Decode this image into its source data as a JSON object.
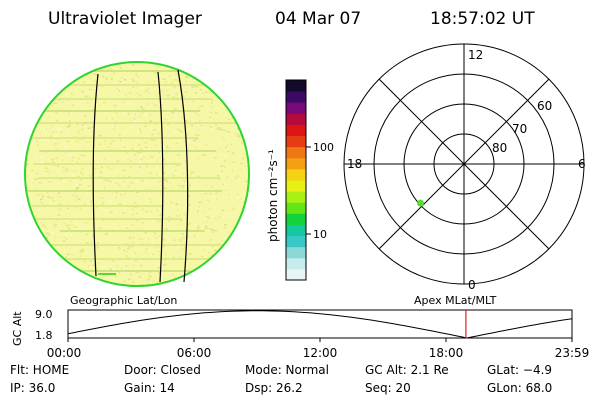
{
  "header": {
    "instrument": "Ultraviolet Imager",
    "date": "04 Mar 07",
    "time": "18:57:02 UT"
  },
  "disk": {
    "caption": "Geographic Lat/Lon",
    "fill_color": "#f7f7a8",
    "rim_color": "#2fd52f"
  },
  "colorbar": {
    "unit_label": "photon cm⁻²s⁻¹",
    "ticks": [
      {
        "value": 100,
        "label": "100"
      },
      {
        "value": 10,
        "label": "10"
      }
    ],
    "colors": [
      "#e6f4f4",
      "#c8ecec",
      "#8ad8d8",
      "#38c8c8",
      "#16c8a0",
      "#14d23c",
      "#64e614",
      "#aaf014",
      "#e6f014",
      "#f5d214",
      "#f5a014",
      "#f07814",
      "#e63c14",
      "#dc1414",
      "#b40a3c",
      "#780a78",
      "#3c0a64",
      "#140a2c"
    ]
  },
  "polar": {
    "caption": "Apex MLat/MLT",
    "mlt_labels": {
      "top": "12",
      "right": "6",
      "bottom": "0",
      "left": "18"
    },
    "lat_labels": [
      "60",
      "70",
      "80"
    ],
    "marker": {
      "mlat": 70.5,
      "mlt": 20.8,
      "color": "#56e026"
    }
  },
  "alt_plot": {
    "ylabel": "GC Alt",
    "ytick_top": "9.0",
    "ytick_bottom": "1.8",
    "ylim": [
      1.8,
      9.0
    ],
    "xticks": [
      "00:00",
      "06:00",
      "12:00",
      "18:00",
      "23:59"
    ],
    "current_time_hours": 18.95,
    "current_marker_color": "#e02020"
  },
  "status": {
    "row1": {
      "flt": "Flt: HOME",
      "door": "Door: Closed",
      "mode": "Mode: Normal",
      "gcalt": "GC Alt: 2.1 Re",
      "glat": "GLat:  −4.9"
    },
    "row2": {
      "ip": "IP: 36.0",
      "gain": "Gain: 14",
      "dsp": "Dsp:    26.2",
      "seq": "Seq: 20",
      "glon": "GLon:  68.0"
    }
  }
}
